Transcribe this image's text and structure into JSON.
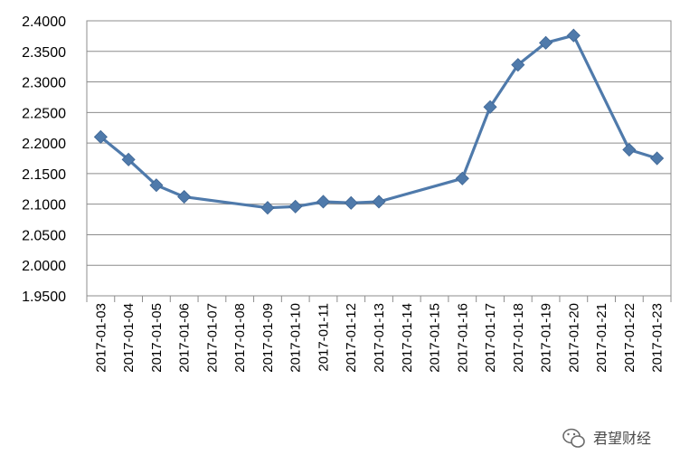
{
  "chart_data": {
    "type": "line",
    "title": "",
    "xlabel": "",
    "ylabel": "",
    "ylim": [
      1.95,
      2.4
    ],
    "y_ticks": [
      "2.4000",
      "2.3500",
      "2.3000",
      "2.2500",
      "2.2000",
      "2.1500",
      "2.1000",
      "2.0500",
      "2.0000",
      "1.9500"
    ],
    "categories": [
      "2017-01-03",
      "2017-01-04",
      "2017-01-05",
      "2017-01-06",
      "2017-01-07",
      "2017-01-08",
      "2017-01-09",
      "2017-01-10",
      "2017-01-11",
      "2017-01-12",
      "2017-01-13",
      "2017-01-14",
      "2017-01-15",
      "2017-01-16",
      "2017-01-17",
      "2017-01-18",
      "2017-01-19",
      "2017-01-20",
      "2017-01-21",
      "2017-01-22",
      "2017-01-23"
    ],
    "series": [
      {
        "values": [
          2.21,
          2.173,
          2.131,
          2.112,
          null,
          null,
          2.094,
          2.096,
          2.104,
          2.102,
          2.104,
          null,
          null,
          2.142,
          2.259,
          2.328,
          2.364,
          2.376,
          null,
          2.189,
          2.175
        ]
      }
    ],
    "grid": true,
    "legend": "none",
    "line_color": "#4f7aab",
    "grid_color": "#8c8c8c"
  },
  "watermark": {
    "text": "君望财经",
    "icon": "wechat-icon"
  }
}
